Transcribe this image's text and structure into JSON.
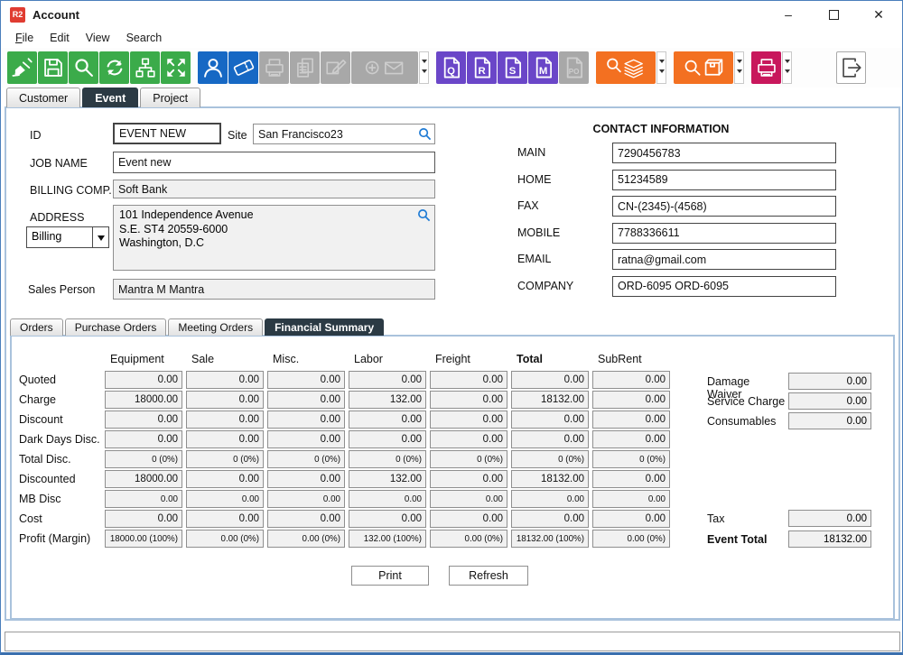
{
  "window": {
    "logo": "R2",
    "title": "Account",
    "controls": {
      "minimize": "minimize",
      "maximize": "maximize",
      "close": "close"
    }
  },
  "menu": {
    "items": [
      {
        "label": "File",
        "underline_first": true
      },
      {
        "label": "Edit"
      },
      {
        "label": "View"
      },
      {
        "label": "Search"
      }
    ]
  },
  "toolbar": {
    "items": [
      {
        "kind": "button",
        "name": "clear-button",
        "icon": "broom-icon",
        "color": "green",
        "enabled": true
      },
      {
        "kind": "button",
        "name": "save-button",
        "icon": "floppy-icon",
        "color": "green",
        "enabled": true
      },
      {
        "kind": "button",
        "name": "search-button",
        "icon": "magnifier-icon",
        "color": "green",
        "enabled": true
      },
      {
        "kind": "button",
        "name": "refresh-button",
        "icon": "refresh-icon",
        "color": "green",
        "enabled": true
      },
      {
        "kind": "button",
        "name": "hierarchy-button",
        "icon": "org-chart-icon",
        "color": "green",
        "enabled": true
      },
      {
        "kind": "button",
        "name": "expand-button",
        "icon": "expand-icon",
        "color": "green",
        "enabled": true
      },
      {
        "kind": "gap"
      },
      {
        "kind": "button",
        "name": "contact-button",
        "icon": "person-icon",
        "color": "blue",
        "enabled": true
      },
      {
        "kind": "button",
        "name": "ticket-button",
        "icon": "ticket-icon",
        "color": "blue",
        "enabled": true
      },
      {
        "kind": "button",
        "name": "print-register-button",
        "icon": "printer-icon",
        "color": "gray",
        "enabled": false
      },
      {
        "kind": "button",
        "name": "copy-button",
        "icon": "copy-icon",
        "color": "gray",
        "enabled": false
      },
      {
        "kind": "button",
        "name": "edit-button",
        "icon": "edit-icon",
        "color": "gray",
        "enabled": false
      },
      {
        "kind": "button",
        "name": "add-mail-button",
        "icon": "plus-envelope-icon",
        "color": "gray",
        "enabled": false,
        "wide": "lg"
      },
      {
        "kind": "dropdown",
        "name": "mail-dropdown"
      },
      {
        "kind": "gap"
      },
      {
        "kind": "doc",
        "name": "quote-button",
        "letter": "Q",
        "color": "purple",
        "enabled": true
      },
      {
        "kind": "doc",
        "name": "reservation-button",
        "letter": "R",
        "color": "purple",
        "enabled": true
      },
      {
        "kind": "doc",
        "name": "subrental-button",
        "letter": "S",
        "color": "purple",
        "enabled": true
      },
      {
        "kind": "doc",
        "name": "meeting-button",
        "letter": "M",
        "color": "purple",
        "enabled": true
      },
      {
        "kind": "doc",
        "name": "purchase-order-button",
        "letter": "PO",
        "color": "gray",
        "enabled": false
      },
      {
        "kind": "gap"
      },
      {
        "kind": "button",
        "name": "search-orders-button",
        "icon": "search-stack-icon",
        "color": "orange",
        "enabled": true,
        "wide": "md"
      },
      {
        "kind": "dropdown",
        "name": "search-orders-dropdown"
      },
      {
        "kind": "gap"
      },
      {
        "kind": "button",
        "name": "search-items-button",
        "icon": "search-package-icon",
        "color": "orange",
        "enabled": true,
        "wide": "md"
      },
      {
        "kind": "dropdown",
        "name": "search-items-dropdown"
      },
      {
        "kind": "gap"
      },
      {
        "kind": "button",
        "name": "print-forms-button",
        "icon": "printer-icon",
        "color": "crimson",
        "enabled": true
      },
      {
        "kind": "dropdown",
        "name": "print-forms-dropdown"
      },
      {
        "kind": "flex"
      },
      {
        "kind": "button",
        "name": "exit-button",
        "icon": "exit-icon",
        "color": "white",
        "enabled": true
      }
    ]
  },
  "tabs": {
    "items": [
      {
        "label": "Customer"
      },
      {
        "label": "Event",
        "active": true
      },
      {
        "label": "Project"
      }
    ]
  },
  "form": {
    "id": {
      "label": "ID",
      "value": "EVENT NEW"
    },
    "site": {
      "label": "Site",
      "value": "San Francisco23"
    },
    "job_name": {
      "label": "JOB NAME",
      "value": "Event new"
    },
    "billing_company": {
      "label": "BILLING COMP.",
      "value": "Soft Bank"
    },
    "address": {
      "label": "ADDRESS",
      "type": "Billing",
      "value": "101 Independence Avenue\nS.E. ST4 20559-6000\nWashington, D.C"
    },
    "sales_person": {
      "label": "Sales Person",
      "value": "Mantra M Mantra"
    }
  },
  "contact": {
    "title": "CONTACT INFORMATION",
    "fields": [
      {
        "label": "MAIN",
        "value": "7290456783"
      },
      {
        "label": "HOME",
        "value": "51234589"
      },
      {
        "label": "FAX",
        "value": "CN-(2345)-(4568)"
      },
      {
        "label": "MOBILE",
        "value": "7788336611"
      },
      {
        "label": "EMAIL",
        "value": "ratna@gmail.com"
      },
      {
        "label": "COMPANY",
        "value": "ORD-6095 ORD-6095"
      }
    ]
  },
  "sub_tabs": {
    "items": [
      {
        "label": "Orders"
      },
      {
        "label": "Purchase Orders"
      },
      {
        "label": "Meeting Orders"
      },
      {
        "label": "Financial Summary",
        "active": true
      }
    ]
  },
  "financial": {
    "columns": [
      {
        "label": "Equipment"
      },
      {
        "label": "Sale"
      },
      {
        "label": "Misc."
      },
      {
        "label": "Labor"
      },
      {
        "label": "Freight"
      },
      {
        "label": "Total",
        "bold": true
      },
      {
        "label": "SubRent"
      }
    ],
    "rows": [
      {
        "label": "Quoted",
        "values": [
          "0.00",
          "0.00",
          "0.00",
          "0.00",
          "0.00",
          "0.00",
          "0.00"
        ]
      },
      {
        "label": "Charge",
        "values": [
          "18000.00",
          "0.00",
          "0.00",
          "132.00",
          "0.00",
          "18132.00",
          "0.00"
        ]
      },
      {
        "label": "Discount",
        "values": [
          "0.00",
          "0.00",
          "0.00",
          "0.00",
          "0.00",
          "0.00",
          "0.00"
        ]
      },
      {
        "label": "Dark Days Disc.",
        "values": [
          "0.00",
          "0.00",
          "0.00",
          "0.00",
          "0.00",
          "0.00",
          "0.00"
        ]
      },
      {
        "label": "Total Disc.",
        "small": true,
        "values": [
          "0 (0%)",
          "0 (0%)",
          "0 (0%)",
          "0 (0%)",
          "0 (0%)",
          "0 (0%)",
          "0 (0%)"
        ]
      },
      {
        "label": "Discounted",
        "values": [
          "18000.00",
          "0.00",
          "0.00",
          "132.00",
          "0.00",
          "18132.00",
          "0.00"
        ]
      },
      {
        "label": "MB Disc",
        "small": true,
        "values": [
          "0.00",
          "0.00",
          "0.00",
          "0.00",
          "0.00",
          "0.00",
          "0.00"
        ]
      },
      {
        "label": "Cost",
        "values": [
          "0.00",
          "0.00",
          "0.00",
          "0.00",
          "0.00",
          "0.00",
          "0.00"
        ]
      },
      {
        "label": "Profit (Margin)",
        "small": true,
        "values": [
          "18000.00 (100%)",
          "0.00 (0%)",
          "0.00 (0%)",
          "132.00 (100%)",
          "0.00 (0%)",
          "18132.00 (100%)",
          "0.00 (0%)"
        ]
      }
    ],
    "side_fields": [
      {
        "label": "Damage Waiver",
        "value": "0.00"
      },
      {
        "label": "Service Charge",
        "value": "0.00"
      },
      {
        "label": "Consumables",
        "value": "0.00"
      }
    ],
    "totals": [
      {
        "label": "Tax",
        "value": "0.00"
      },
      {
        "label": "Event Total",
        "value": "18132.00",
        "bold": true
      }
    ],
    "buttons": {
      "print": "Print",
      "refresh": "Refresh"
    }
  },
  "colors": {
    "green": "#3bab4a",
    "blue": "#1668c4",
    "purple": "#6a46c8",
    "orange": "#f37021",
    "crimson": "#c8175c",
    "disabled_gray": "#a8a8a8",
    "active_tab": "#2b3a44",
    "panel_border": "#a9c2dc",
    "search_icon_blue": "#1e7ad4",
    "logo_red": "#e03c31"
  }
}
